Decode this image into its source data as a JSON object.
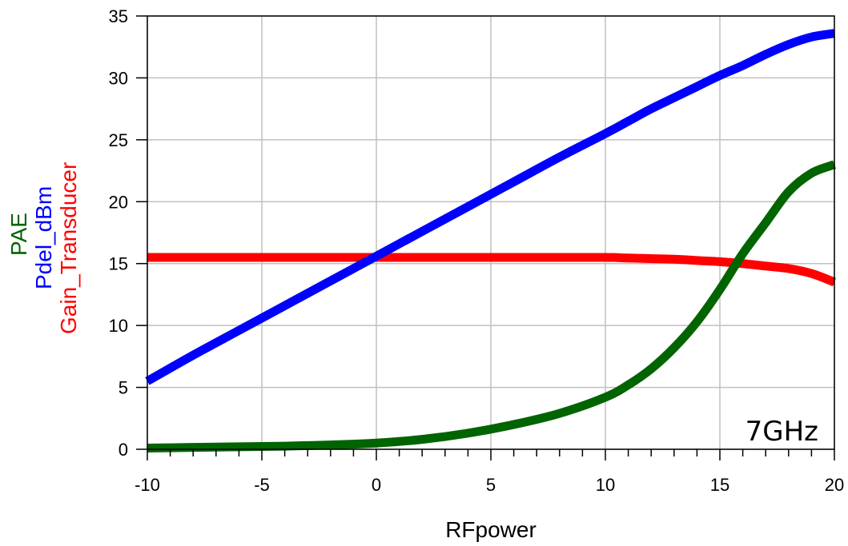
{
  "chart_data": {
    "type": "line",
    "xlabel": "RFpower",
    "ylabel": "",
    "xlim": [
      -10,
      20
    ],
    "ylim": [
      0,
      35
    ],
    "xticks": [
      -10,
      -5,
      0,
      5,
      10,
      15,
      20
    ],
    "yticks": [
      0,
      5,
      10,
      15,
      20,
      25,
      30,
      35
    ],
    "grid": true,
    "legend": "none",
    "ylabel_series": [
      {
        "text": "PAE",
        "color": "#006400"
      },
      {
        "text": "Pdel_dBm",
        "color": "#0000ff"
      },
      {
        "text": "Gain_Transducer",
        "color": "#ff0000"
      }
    ],
    "annotation": "7GHz",
    "x": [
      -10,
      -8,
      -6,
      -4,
      -2,
      0,
      2,
      4,
      6,
      8,
      10,
      11,
      12,
      13,
      14,
      15,
      16,
      17,
      18,
      19,
      20
    ],
    "series": [
      {
        "name": "Pdel_dBm",
        "color": "#0000ff",
        "values": [
          5.5,
          7.6,
          9.6,
          11.6,
          13.6,
          15.6,
          17.6,
          19.6,
          21.6,
          23.6,
          25.5,
          26.5,
          27.5,
          28.4,
          29.3,
          30.2,
          31.0,
          31.9,
          32.7,
          33.3,
          33.6
        ]
      },
      {
        "name": "Gain_Transducer",
        "color": "#ff0000",
        "values": [
          15.5,
          15.5,
          15.5,
          15.5,
          15.5,
          15.5,
          15.5,
          15.5,
          15.5,
          15.5,
          15.5,
          15.45,
          15.4,
          15.35,
          15.25,
          15.15,
          15.0,
          14.8,
          14.6,
          14.2,
          13.5
        ]
      },
      {
        "name": "PAE",
        "color": "#006400",
        "values": [
          0.1,
          0.15,
          0.2,
          0.25,
          0.35,
          0.5,
          0.8,
          1.3,
          2.0,
          2.9,
          4.2,
          5.2,
          6.5,
          8.2,
          10.3,
          12.9,
          15.8,
          18.3,
          20.8,
          22.3,
          23.0
        ]
      }
    ]
  }
}
